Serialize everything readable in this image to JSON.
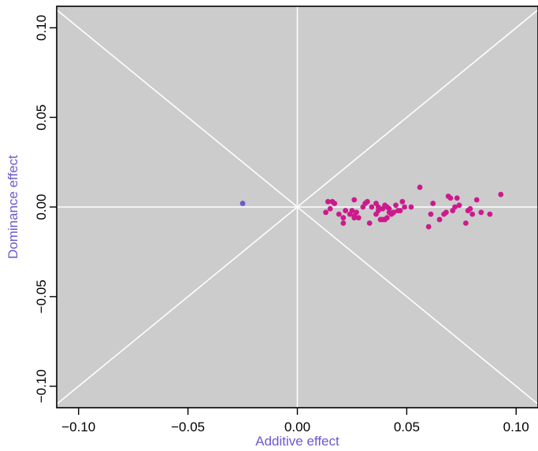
{
  "chart_data": {
    "type": "scatter",
    "title": "",
    "xlabel": "Additive effect",
    "ylabel": "Dominance effect",
    "xlim": [
      -0.11,
      0.11
    ],
    "ylim": [
      -0.112,
      0.112
    ],
    "xticks": [
      -0.1,
      -0.05,
      0.0,
      0.05,
      0.1
    ],
    "xtick_labels": [
      "−0.10",
      "−0.05",
      "0.00",
      "0.05",
      "0.10"
    ],
    "yticks": [
      -0.1,
      -0.05,
      0.0,
      0.05,
      0.1
    ],
    "ytick_labels": [
      "−0.10",
      "−0.05",
      "0.00",
      "0.05",
      "0.10"
    ],
    "grid": false,
    "reference_lines": [
      "y=0",
      "x=0",
      "y=x",
      "y=-x"
    ],
    "colors": {
      "panel": "#cccccc",
      "lines": "#ffffff",
      "label": "#6a5acd",
      "series_a": "#cc1a8c",
      "series_b": "#6a5acd"
    },
    "series": [
      {
        "color": "#cc1a8c",
        "x": [
          0.014,
          0.015,
          0.016,
          0.017,
          0.013,
          0.019,
          0.021,
          0.021,
          0.022,
          0.024,
          0.025,
          0.026,
          0.026,
          0.027,
          0.028,
          0.026,
          0.03,
          0.031,
          0.032,
          0.033,
          0.034,
          0.036,
          0.036,
          0.037,
          0.037,
          0.038,
          0.039,
          0.039,
          0.04,
          0.04,
          0.041,
          0.041,
          0.042,
          0.042,
          0.043,
          0.044,
          0.045,
          0.046,
          0.047,
          0.048,
          0.049,
          0.052,
          0.056,
          0.06,
          0.061,
          0.062,
          0.065,
          0.067,
          0.068,
          0.069,
          0.07,
          0.071,
          0.072,
          0.073,
          0.074,
          0.077,
          0.078,
          0.079,
          0.08,
          0.082,
          0.084,
          0.088,
          0.093
        ],
        "y": [
          0.003,
          -0.001,
          0.003,
          0.002,
          -0.003,
          -0.004,
          -0.006,
          -0.009,
          -0.002,
          -0.004,
          -0.002,
          0.004,
          -0.005,
          -0.003,
          -0.006,
          -0.006,
          0.0,
          0.002,
          0.003,
          -0.009,
          0.0,
          0.002,
          -0.004,
          -0.002,
          0.0,
          -0.007,
          -0.001,
          -0.007,
          0.001,
          -0.007,
          -0.006,
          0.0,
          -0.001,
          -0.003,
          -0.004,
          -0.003,
          0.001,
          -0.002,
          -0.002,
          0.003,
          0.0,
          0.0,
          0.011,
          -0.011,
          -0.004,
          0.002,
          -0.007,
          -0.004,
          -0.003,
          0.006,
          0.005,
          -0.002,
          0.0,
          0.005,
          0.001,
          -0.009,
          -0.002,
          -0.001,
          -0.004,
          0.004,
          -0.003,
          -0.004,
          0.007
        ]
      },
      {
        "color": "#6a5acd",
        "x": [
          -0.025
        ],
        "y": [
          0.002
        ]
      }
    ]
  }
}
